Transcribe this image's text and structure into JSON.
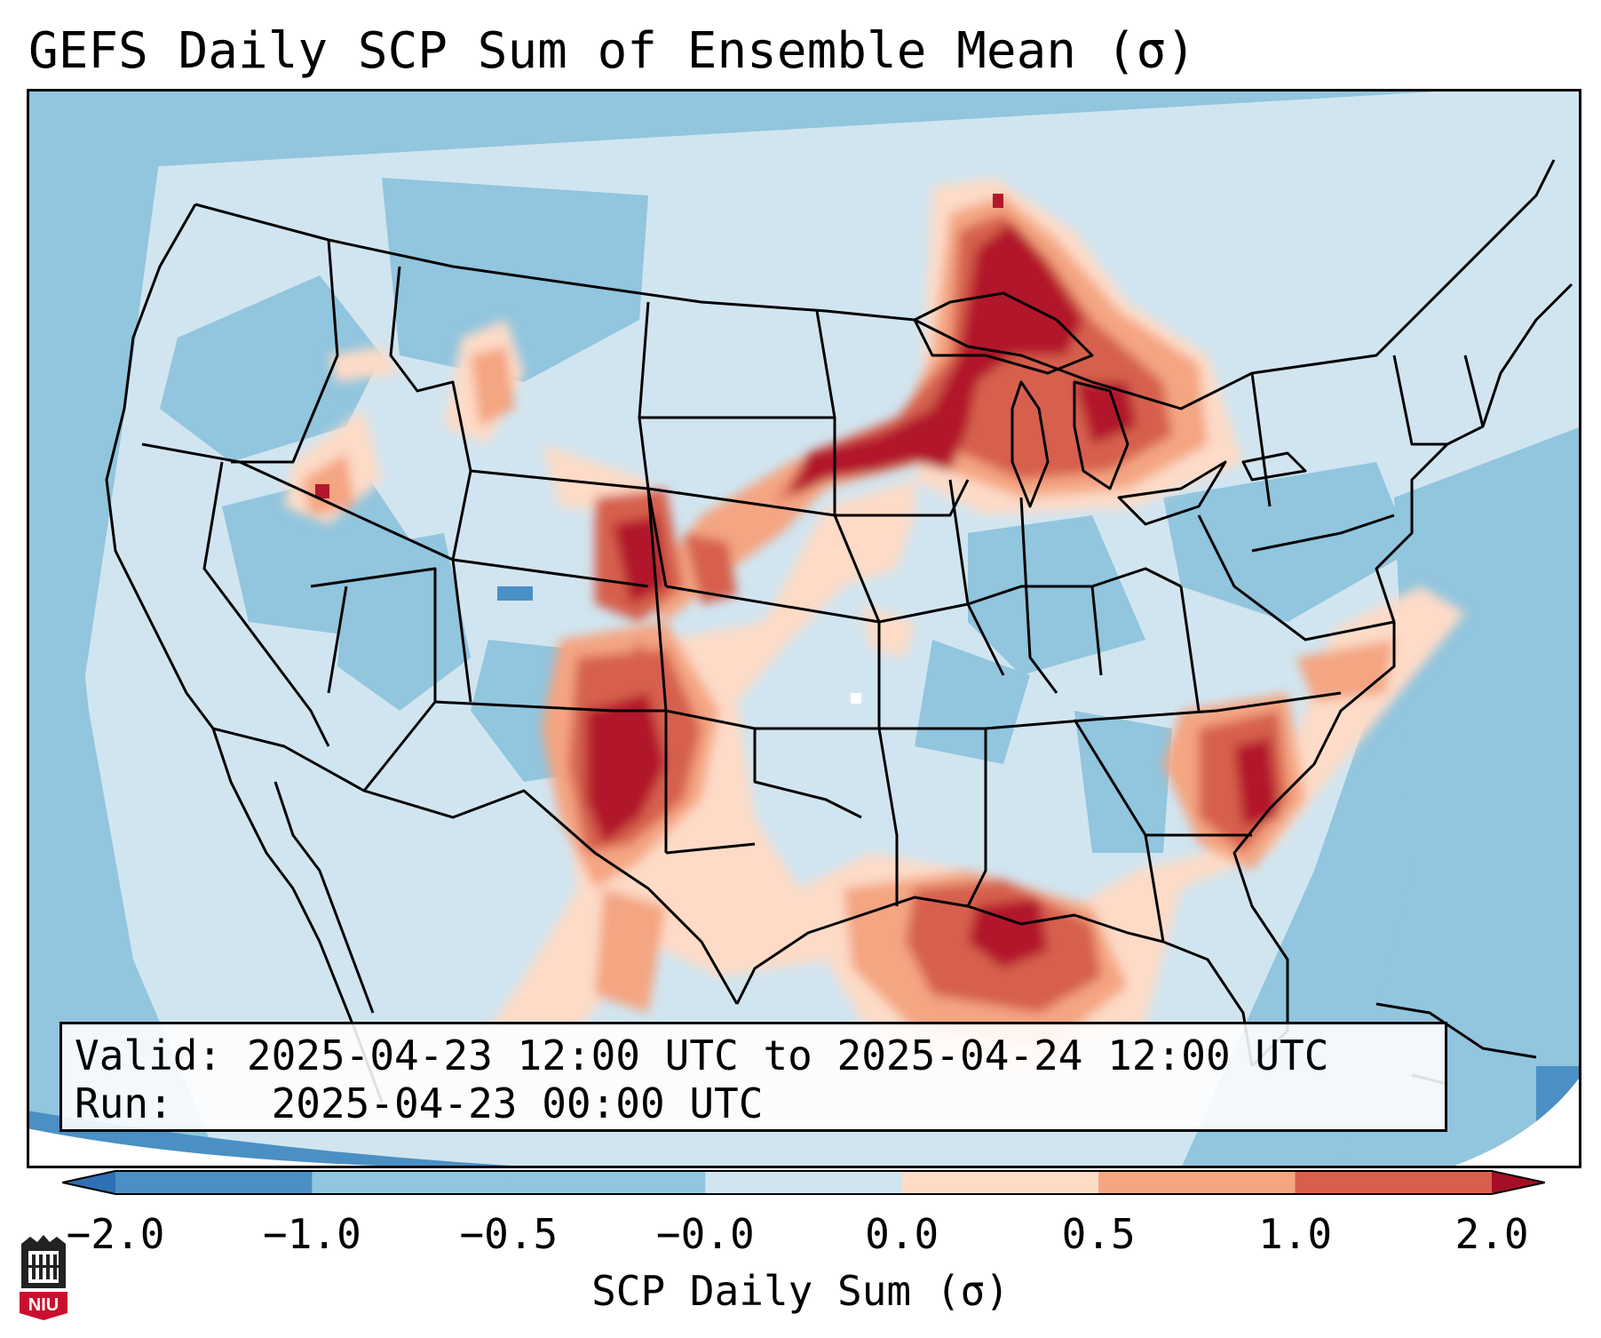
{
  "title": "GEFS Daily SCP Sum of Ensemble Mean (σ)",
  "info": {
    "valid_label": "Valid:",
    "valid_value": "2025-04-23 12:00 UTC to 2025-04-24 12:00 UTC",
    "run_label": "Run:",
    "run_value": "2025-04-23 00:00 UTC"
  },
  "colorbar": {
    "label": "SCP Daily Sum (σ)",
    "ticks": [
      "−2.0",
      "−1.0",
      "−0.5",
      "−0.0",
      "0.0",
      "0.5",
      "1.0",
      "2.0"
    ],
    "colors": {
      "under": "#2f6fb3",
      "c1": "#4a90c4",
      "c2": "#92c5de",
      "c3": "#d1e5f0",
      "c4": "#fddbc7",
      "c5": "#f4a582",
      "c6": "#d6604d",
      "c7": "#b2182b",
      "over": "#a50f25"
    }
  },
  "logo": {
    "text": "NIU",
    "color": "#c8102e"
  }
}
